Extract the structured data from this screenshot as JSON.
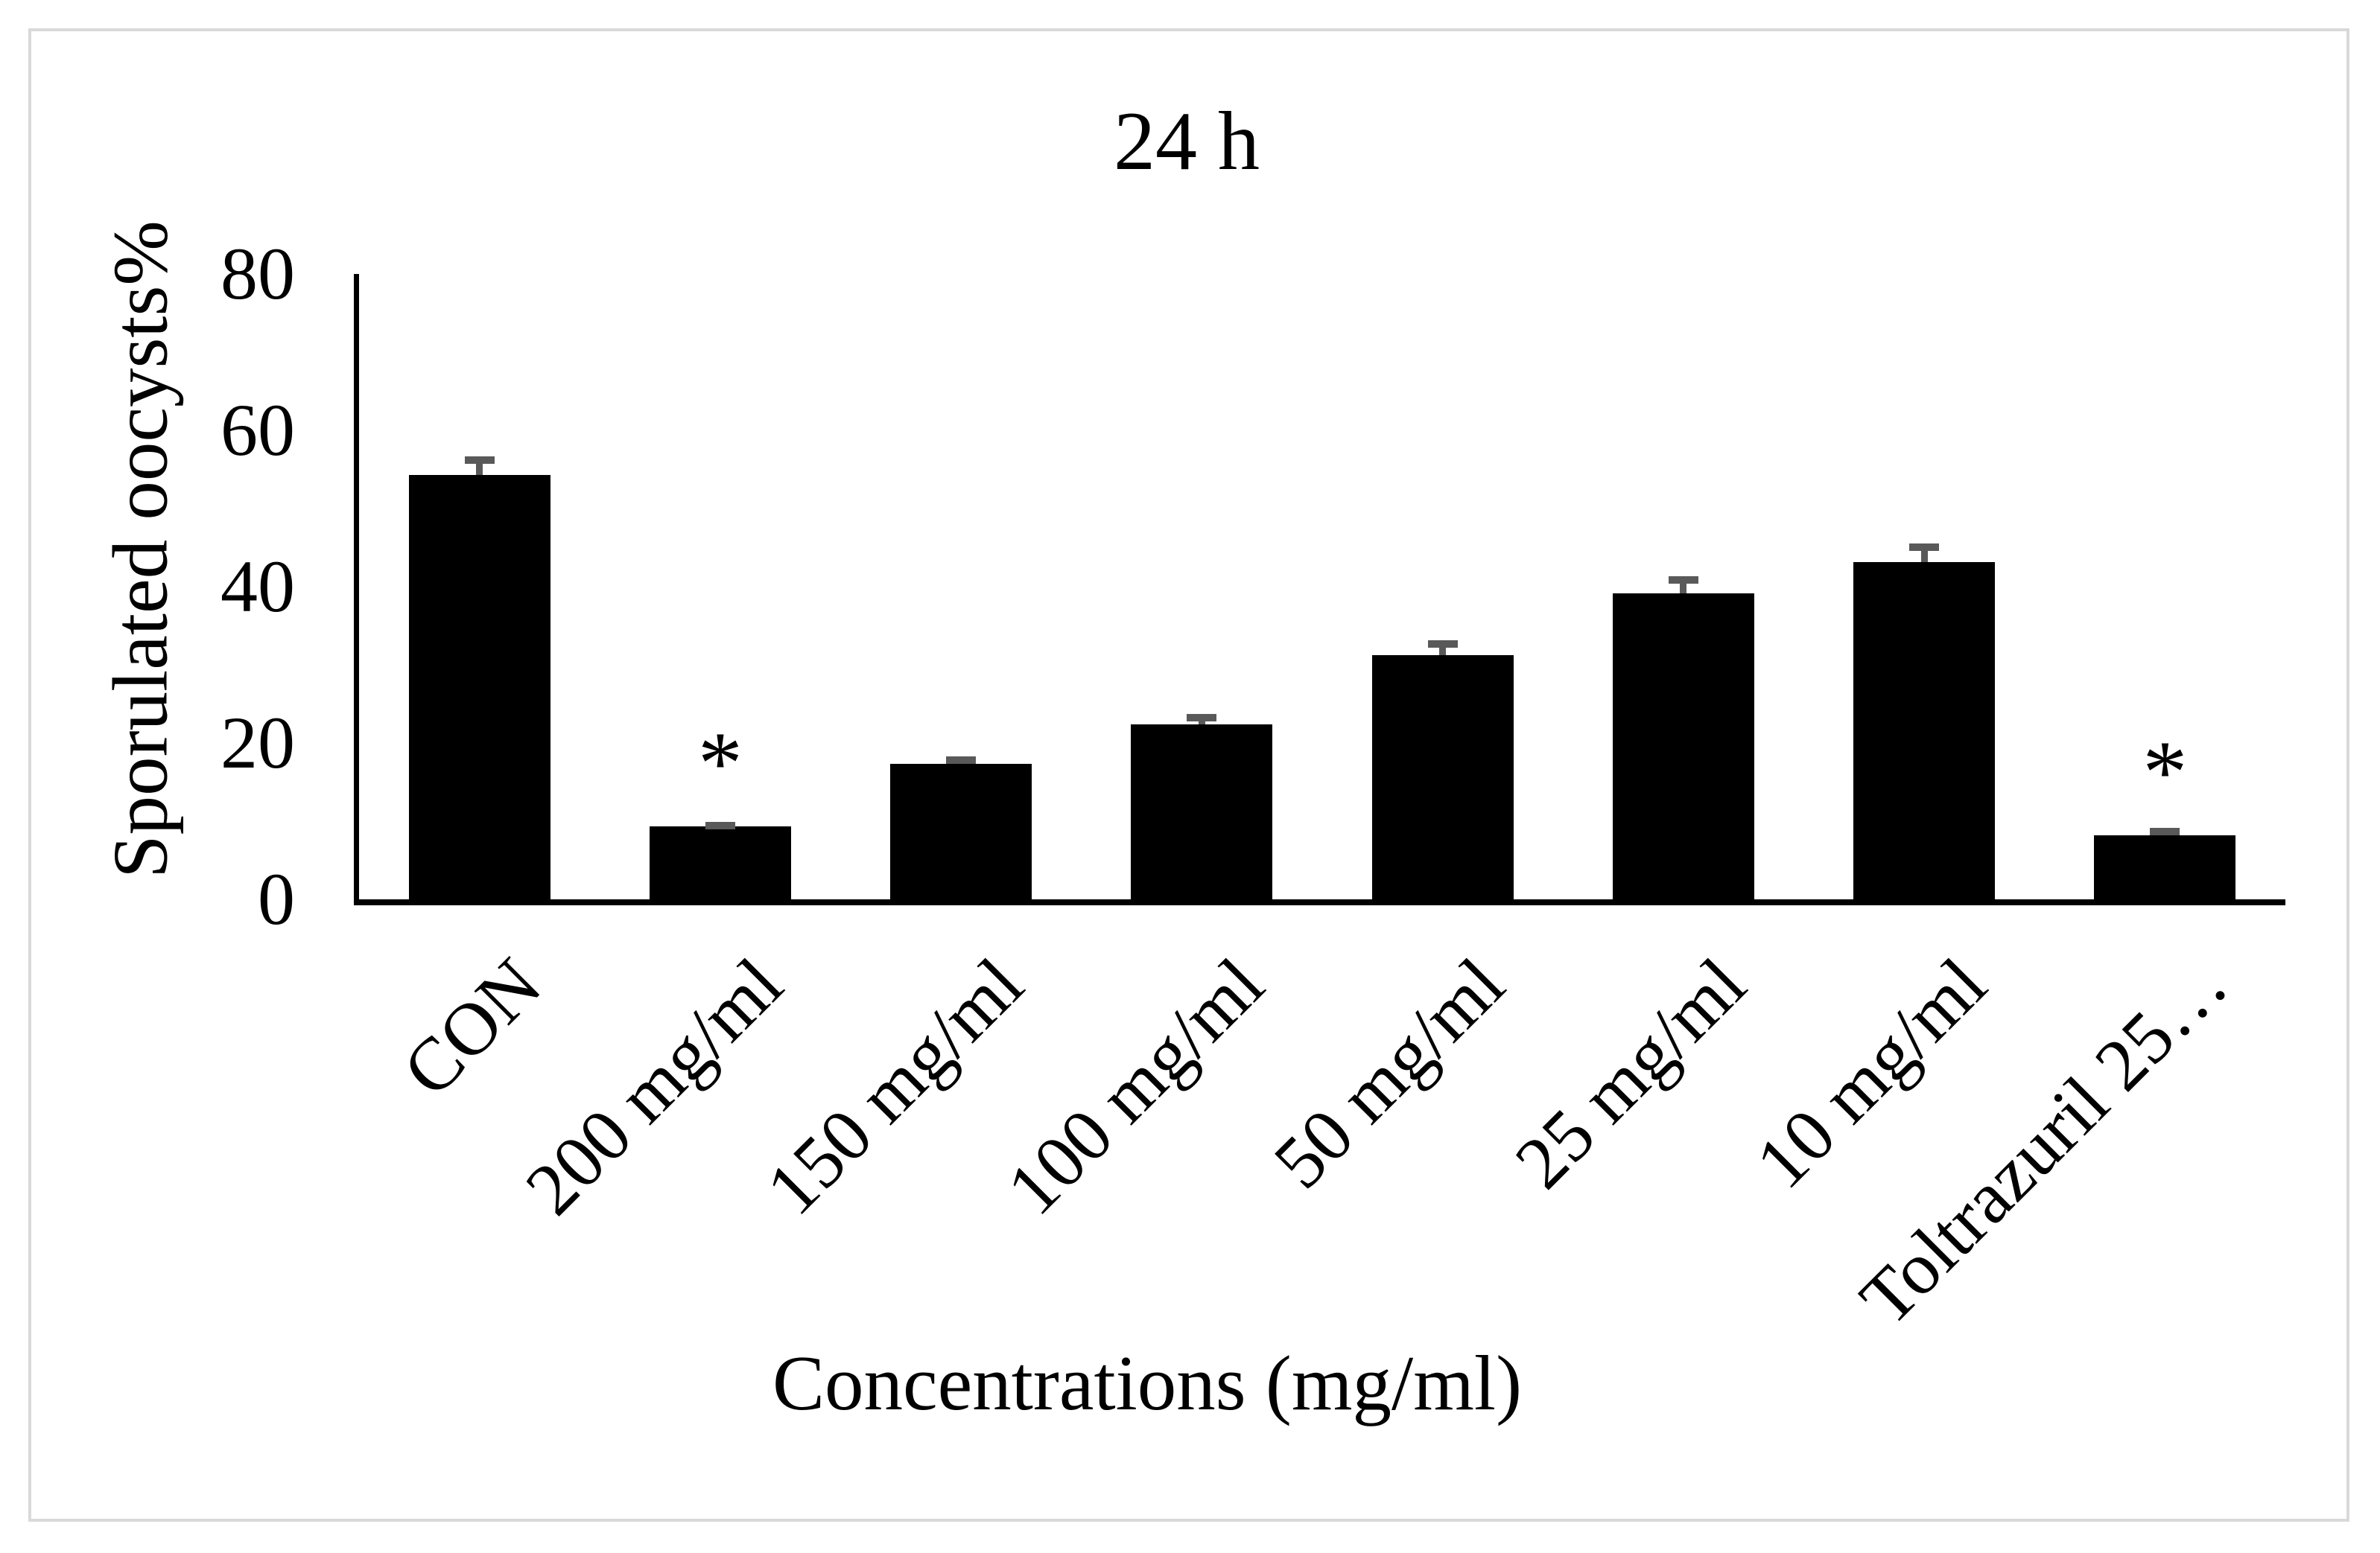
{
  "figure": {
    "border_color": "#d9d9d9",
    "background": "#ffffff"
  },
  "chart_data": {
    "type": "bar",
    "title": "24 h",
    "xlabel": "Concentrations (mg/ml)",
    "ylabel": "Sporulated oocysts%",
    "categories": [
      "CON",
      "200 mg/ml",
      "150 mg/ml",
      "100 mg/ml",
      "50 mg/ml",
      "25 mg/ml",
      "10 mg/ml",
      "Toltrazuril 25…"
    ],
    "values": [
      54.3,
      9.3,
      17.3,
      22.4,
      31.2,
      39.1,
      43.1,
      8.2
    ],
    "errors_plus": [
      2.4,
      0.6,
      1.0,
      1.3,
      1.9,
      2.2,
      2.4,
      0.9
    ],
    "significant": [
      false,
      true,
      false,
      false,
      false,
      false,
      false,
      true
    ],
    "significance_marker": "*",
    "yticks": [
      0,
      20,
      40,
      60,
      80
    ],
    "ylim": [
      0,
      80
    ],
    "grid": false,
    "legend": false,
    "bar_color": "#000000",
    "error_bar_color": "#595959",
    "axis_color": "#000000"
  }
}
